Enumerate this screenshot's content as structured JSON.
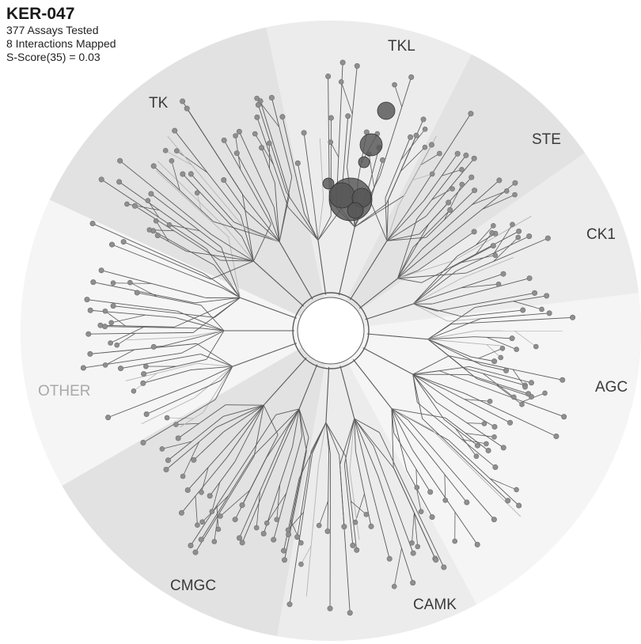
{
  "compound": {
    "name": "KER-047",
    "assays_tested": "377 Assays Tested",
    "interactions_mapped": "8 Interactions Mapped",
    "s_score": "S-Score(35) = 0.03"
  },
  "groups": [
    {
      "label": "TK",
      "key": "tk"
    },
    {
      "label": "TKL",
      "key": "tkl"
    },
    {
      "label": "STE",
      "key": "ste"
    },
    {
      "label": "CK1",
      "key": "ck1"
    },
    {
      "label": "AGC",
      "key": "agc"
    },
    {
      "label": "CAMK",
      "key": "camk"
    },
    {
      "label": "CMGC",
      "key": "cmgc"
    },
    {
      "label": "OTHER",
      "key": "other",
      "faded": true
    }
  ],
  "colors": {
    "disc": "#ececec",
    "sector_alt": "#e2e2e2",
    "sector_light": "#f5f5f5",
    "branch": "#5a5a5a",
    "branch_light": "#b5b5b5",
    "leaf_node": "#8f8f8f",
    "hit": "#555555",
    "hub": "#ffffff"
  }
}
